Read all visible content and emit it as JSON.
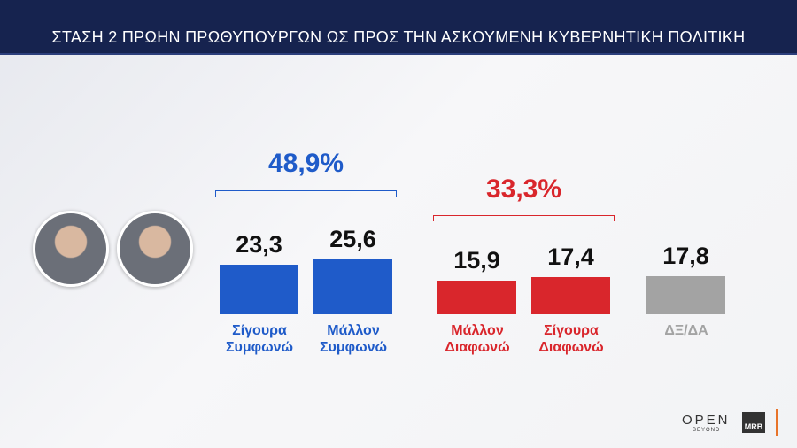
{
  "chart_data": {
    "type": "bar",
    "title": "ΣΤΑΣΗ 2 ΠΡΩΗΝ ΠΡΩΘΥΠΟΥΡΓΩΝ  ΩΣ ΠΡΟΣ ΤΗΝ ΑΣΚΟΥΜΕΝΗ ΚΥΒΕΡΝΗΤΙΚΗ ΠΟΛΙΤΙΚΗ",
    "groups": [
      {
        "total": 48.9,
        "total_label": "48,9%",
        "color": "#1f5bc9",
        "categories": [
          "Σίγουρα Συμφωνώ",
          "Μάλλον Συμφωνώ"
        ],
        "values": [
          23.3,
          25.6
        ],
        "value_labels": [
          "23,3",
          "25,6"
        ]
      },
      {
        "total": 33.3,
        "total_label": "33,3%",
        "color": "#d9262c",
        "categories": [
          "Μάλλον Διαφωνώ",
          "Σίγουρα Διαφωνώ"
        ],
        "values": [
          15.9,
          17.4
        ],
        "value_labels": [
          "15,9",
          "17,4"
        ]
      },
      {
        "color": "#a3a3a3",
        "categories": [
          "ΔΞ/ΔΑ"
        ],
        "values": [
          17.8
        ],
        "value_labels": [
          "17,8"
        ]
      }
    ]
  },
  "branding": {
    "channel": "OPEN",
    "channel_sub": "BEYOND",
    "pollster": "MRB"
  }
}
